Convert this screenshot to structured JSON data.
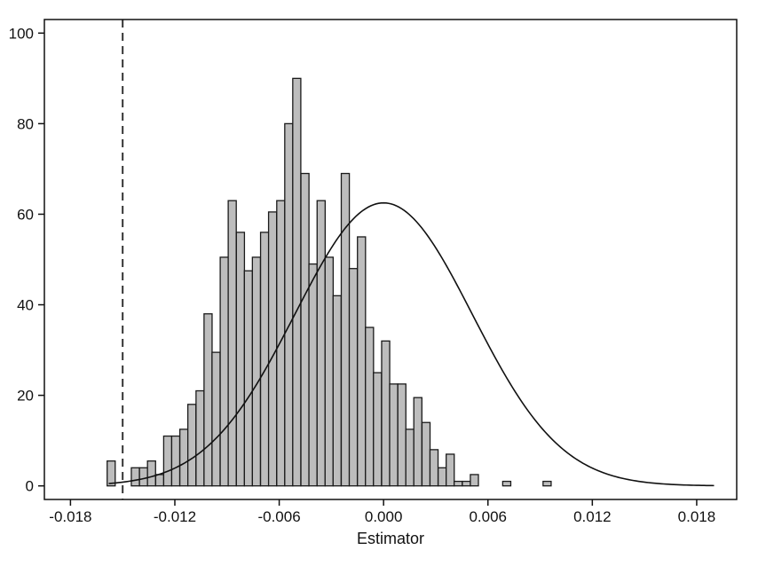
{
  "chart_data": {
    "type": "bar",
    "subtype": "histogram-with-density-curve",
    "title": "",
    "xlabel": "Estimator",
    "ylabel": "",
    "xlim": [
      -0.0195,
      0.0203
    ],
    "ylim": [
      -3,
      103
    ],
    "x_ticks": [
      -0.018,
      -0.012,
      -0.006,
      0.0,
      0.006,
      0.012,
      0.018
    ],
    "x_tick_labels": [
      "-0.018",
      "-0.012",
      "-0.006",
      "0.000",
      "0.006",
      "0.012",
      "0.018"
    ],
    "y_ticks": [
      0,
      20,
      40,
      60,
      80,
      100
    ],
    "y_tick_labels": [
      "0",
      "20",
      "40",
      "60",
      "80",
      "100"
    ],
    "grid": false,
    "bin_width": 0.000464,
    "bins": [
      {
        "x": -0.01566,
        "y": 5.5
      },
      {
        "x": -0.01427,
        "y": 4
      },
      {
        "x": -0.0138,
        "y": 4
      },
      {
        "x": -0.01334,
        "y": 5.5
      },
      {
        "x": -0.01287,
        "y": 2.5
      },
      {
        "x": -0.01241,
        "y": 11
      },
      {
        "x": -0.01195,
        "y": 11
      },
      {
        "x": -0.01148,
        "y": 12.5
      },
      {
        "x": -0.01102,
        "y": 18
      },
      {
        "x": -0.01055,
        "y": 21
      },
      {
        "x": -0.01009,
        "y": 38
      },
      {
        "x": -0.00963,
        "y": 29.5
      },
      {
        "x": -0.00916,
        "y": 50.5
      },
      {
        "x": -0.0087,
        "y": 63
      },
      {
        "x": -0.00823,
        "y": 56
      },
      {
        "x": -0.00777,
        "y": 47.5
      },
      {
        "x": -0.00731,
        "y": 50.5
      },
      {
        "x": -0.00684,
        "y": 56
      },
      {
        "x": -0.00638,
        "y": 60.5
      },
      {
        "x": -0.00591,
        "y": 63
      },
      {
        "x": -0.00545,
        "y": 80
      },
      {
        "x": -0.00499,
        "y": 90
      },
      {
        "x": -0.00452,
        "y": 69
      },
      {
        "x": -0.00406,
        "y": 49
      },
      {
        "x": -0.00359,
        "y": 63
      },
      {
        "x": -0.00313,
        "y": 50.5
      },
      {
        "x": -0.00267,
        "y": 42
      },
      {
        "x": -0.0022,
        "y": 69
      },
      {
        "x": -0.00174,
        "y": 48
      },
      {
        "x": -0.00127,
        "y": 55
      },
      {
        "x": -0.00081,
        "y": 35
      },
      {
        "x": -0.00035,
        "y": 25
      },
      {
        "x": 0.00012,
        "y": 32
      },
      {
        "x": 0.00058,
        "y": 22.5
      },
      {
        "x": 0.00105,
        "y": 22.5
      },
      {
        "x": 0.00151,
        "y": 12.5
      },
      {
        "x": 0.00197,
        "y": 19.5
      },
      {
        "x": 0.00244,
        "y": 14
      },
      {
        "x": 0.0029,
        "y": 8
      },
      {
        "x": 0.00337,
        "y": 4
      },
      {
        "x": 0.00383,
        "y": 7
      },
      {
        "x": 0.00429,
        "y": 1
      },
      {
        "x": 0.00476,
        "y": 1
      },
      {
        "x": 0.00522,
        "y": 2.5
      },
      {
        "x": 0.00708,
        "y": 1
      },
      {
        "x": 0.0094,
        "y": 1
      }
    ],
    "density_curve": {
      "type": "normal",
      "mean": 0.0,
      "peak": 62.5,
      "sd": 0.0051,
      "baseline_offset": 0
    },
    "reference_line": {
      "x": -0.015,
      "style": "dashed"
    },
    "colors": {
      "bar_fill": "#bdbdbd",
      "bar_stroke": "#1a1a1a",
      "curve": "#111111",
      "axis": "#111111",
      "reference_line": "#333333"
    }
  }
}
